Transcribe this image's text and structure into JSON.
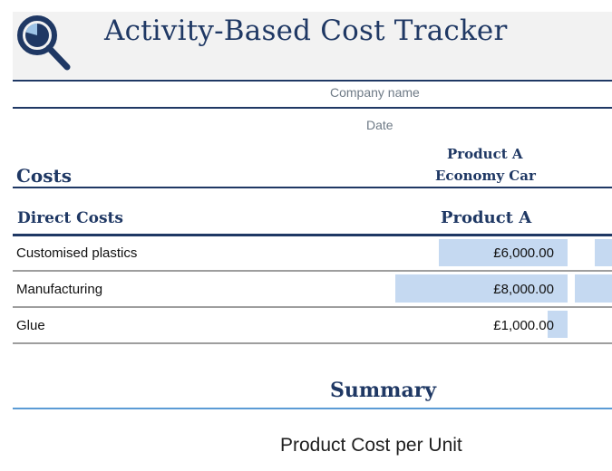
{
  "header": {
    "title": "Activity-Based Cost Tracker",
    "logo_icon": "magnifier-pie-icon",
    "accent_color": "#1f3864"
  },
  "meta": {
    "company_placeholder": "Company name",
    "date_placeholder": "Date"
  },
  "product": {
    "name": "Product A",
    "type": "Economy Car"
  },
  "costs_section": {
    "heading": "Costs",
    "subheading": "Direct Costs",
    "column_header": "Product A",
    "rows": [
      {
        "label": "Customised plastics",
        "value": "£6,000.00"
      },
      {
        "label": "Manufacturing",
        "value": "£8,000.00"
      },
      {
        "label": "Glue",
        "value": "£1,000.00"
      }
    ],
    "bar_color": "#c5d9f1"
  },
  "summary": {
    "heading": "Summary",
    "metric_label": "Product Cost per Unit"
  }
}
